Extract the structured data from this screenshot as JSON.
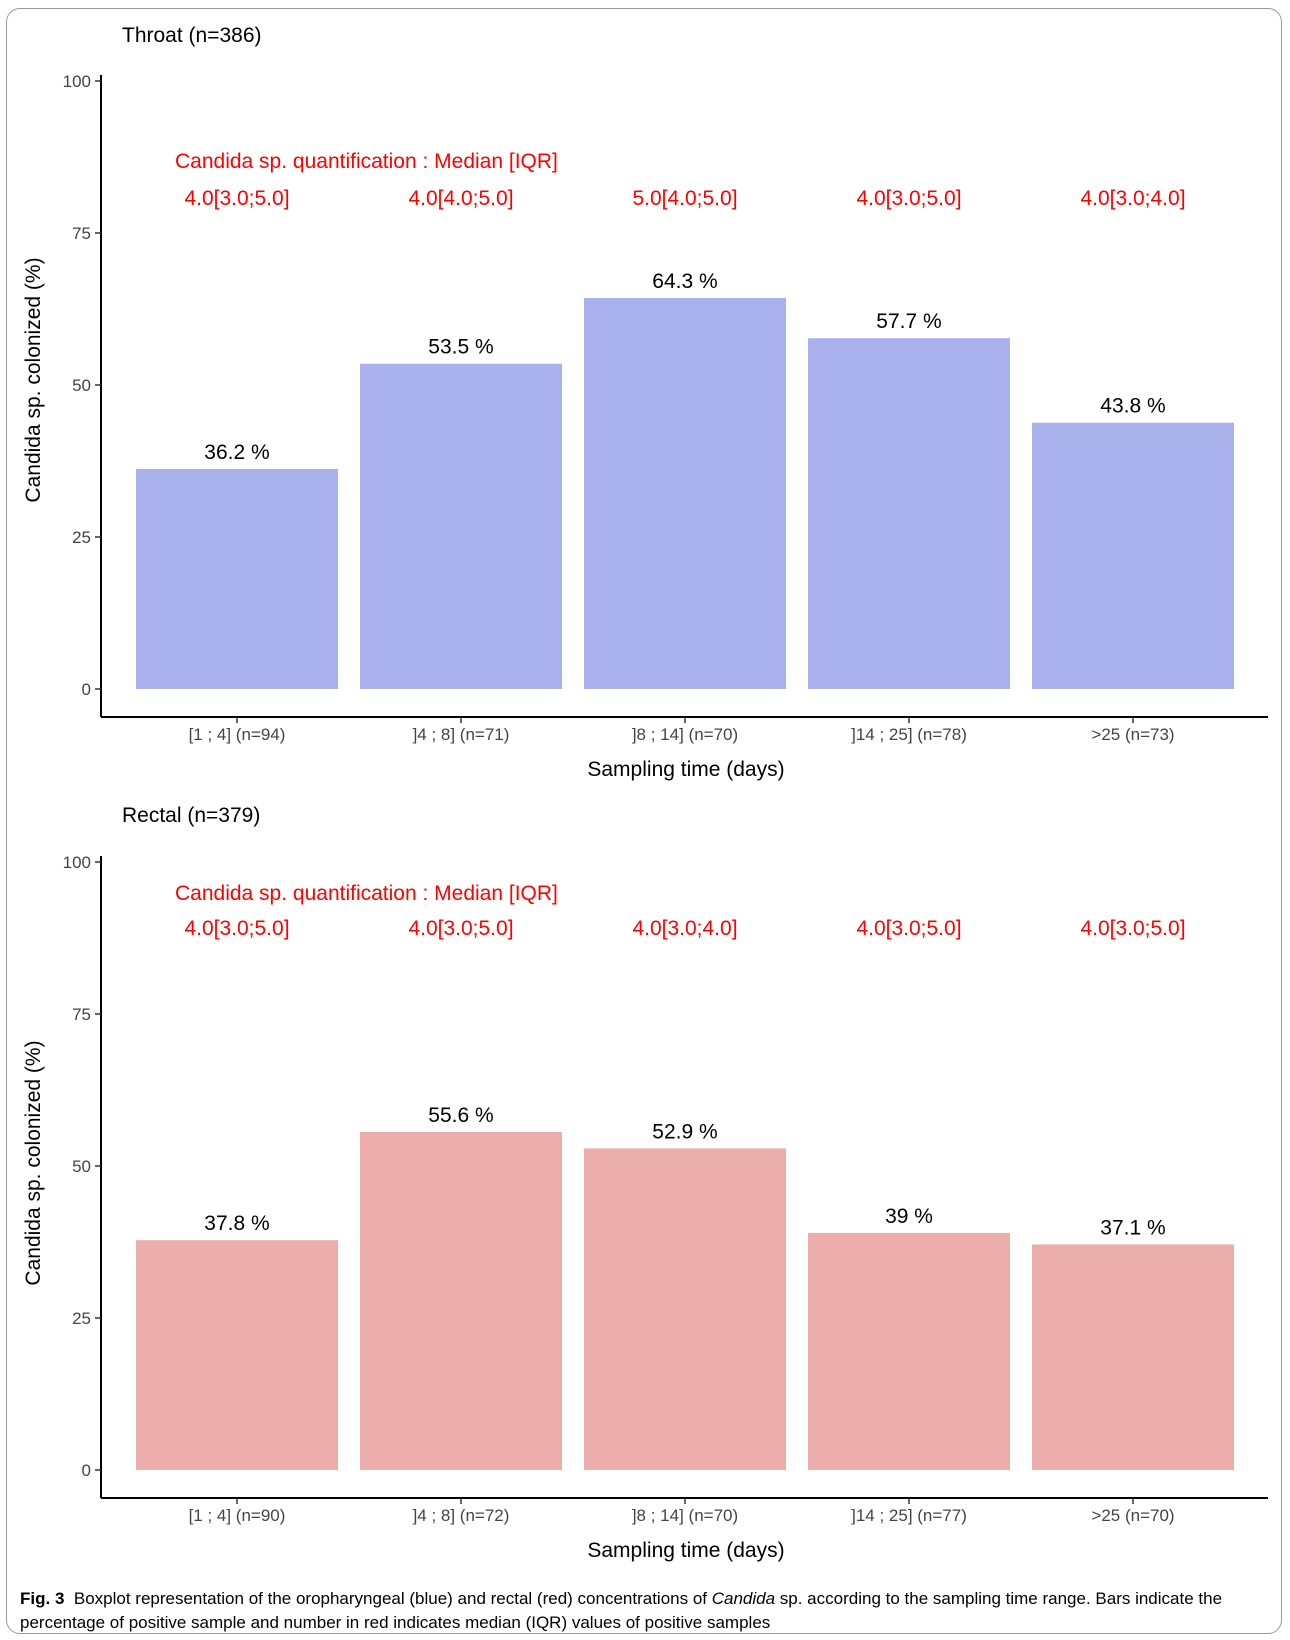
{
  "chart_data": [
    {
      "type": "bar",
      "title": "Throat (n=386)",
      "xlabel": "Sampling time (days)",
      "ylabel": "Candida sp. colonized (%)",
      "ylim": [
        0,
        100
      ],
      "yticks": [
        0,
        25,
        50,
        75,
        100
      ],
      "categories": [
        "[1 ; 4] (n=94)",
        "]4 ; 8] (n=71)",
        "]8 ; 14] (n=70)",
        "]14 ; 25] (n=78)",
        ">25 (n=73)"
      ],
      "values": [
        36.2,
        53.5,
        64.3,
        57.7,
        43.8
      ],
      "value_labels": [
        "36.2 %",
        "53.5 %",
        "64.3 %",
        "57.7 %",
        "43.8 %"
      ],
      "annotation_title": "Candida sp. quantification : Median [IQR]",
      "annotations": [
        "4.0[3.0;5.0]",
        "4.0[4.0;5.0]",
        "5.0[4.0;5.0]",
        "4.0[3.0;5.0]",
        "4.0[3.0;4.0]"
      ],
      "bar_color": "#aab2ee",
      "annotation_color": "#ff0000",
      "grid": false
    },
    {
      "type": "bar",
      "title": "Rectal (n=379)",
      "xlabel": "Sampling time (days)",
      "ylabel": "Candida sp. colonized (%)",
      "ylim": [
        0,
        100
      ],
      "yticks": [
        0,
        25,
        50,
        75,
        100
      ],
      "categories": [
        "[1 ; 4] (n=90)",
        "]4 ; 8] (n=72)",
        "]8 ; 14] (n=70)",
        "]14 ; 25] (n=77)",
        ">25 (n=70)"
      ],
      "values": [
        37.8,
        55.6,
        52.9,
        39,
        37.1
      ],
      "value_labels": [
        "37.8 %",
        "55.6 %",
        "52.9 %",
        "39 %",
        "37.1 %"
      ],
      "annotation_title": "Candida sp. quantification : Median [IQR]",
      "annotations": [
        "4.0[3.0;5.0]",
        "4.0[3.0;5.0]",
        "4.0[3.0;4.0]",
        "4.0[3.0;5.0]",
        "4.0[3.0;5.0]"
      ],
      "bar_color": "#ecaeaa",
      "annotation_color": "#ff0000",
      "grid": false
    }
  ],
  "caption": {
    "label": "Fig. 3",
    "text_before": "Boxplot representation of the oropharyngeal (blue) and rectal (red) concentrations of ",
    "italic": "Candida",
    "text_after": " sp. according to the sampling time range. Bars indicate the percentage of positive sample and number in red indicates median (IQR) values of positive samples"
  }
}
